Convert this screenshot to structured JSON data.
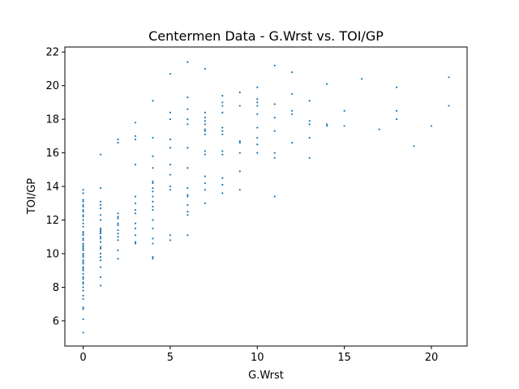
{
  "chart_data": {
    "type": "scatter",
    "title": "Centermen Data - G.Wrst vs. TOI/GP",
    "xlabel": "G.Wrst",
    "ylabel": "TOI/GP",
    "xlim": [
      -1.05,
      22.05
    ],
    "ylim": [
      4.5,
      22.3
    ],
    "xticks": [
      0,
      5,
      10,
      15,
      20
    ],
    "yticks": [
      6,
      8,
      10,
      12,
      14,
      16,
      18,
      20,
      22
    ],
    "grid": false,
    "marker_color": "#1f77b4",
    "points": [
      [
        0,
        5.3
      ],
      [
        0,
        6.1
      ],
      [
        0,
        6.7
      ],
      [
        0,
        6.8
      ],
      [
        0,
        7.3
      ],
      [
        0,
        7.5
      ],
      [
        0,
        7.8
      ],
      [
        0,
        8.0
      ],
      [
        0,
        8.2
      ],
      [
        0,
        8.3
      ],
      [
        0,
        8.5
      ],
      [
        0,
        8.6
      ],
      [
        0,
        8.8
      ],
      [
        0,
        9.0
      ],
      [
        0,
        9.1
      ],
      [
        0,
        9.2
      ],
      [
        0,
        9.4
      ],
      [
        0,
        9.5
      ],
      [
        0,
        9.6
      ],
      [
        0,
        9.8
      ],
      [
        0,
        9.9
      ],
      [
        0,
        10.0
      ],
      [
        0,
        10.2
      ],
      [
        0,
        10.3
      ],
      [
        0,
        10.4
      ],
      [
        0,
        10.5
      ],
      [
        0,
        10.6
      ],
      [
        0,
        10.8
      ],
      [
        0,
        10.9
      ],
      [
        0,
        11.1
      ],
      [
        0,
        11.2
      ],
      [
        0,
        11.3
      ],
      [
        0,
        11.6
      ],
      [
        0,
        11.8
      ],
      [
        0,
        12.0
      ],
      [
        0,
        12.2
      ],
      [
        0,
        12.3
      ],
      [
        0,
        12.5
      ],
      [
        0,
        12.6
      ],
      [
        0,
        12.8
      ],
      [
        0,
        12.9
      ],
      [
        0,
        13.1
      ],
      [
        0,
        13.2
      ],
      [
        0,
        13.6
      ],
      [
        0,
        13.8
      ],
      [
        1,
        8.1
      ],
      [
        1,
        8.6
      ],
      [
        1,
        9.2
      ],
      [
        1,
        9.6
      ],
      [
        1,
        9.8
      ],
      [
        1,
        10.0
      ],
      [
        1,
        10.3
      ],
      [
        1,
        10.4
      ],
      [
        1,
        10.7
      ],
      [
        1,
        10.9
      ],
      [
        1,
        11.0
      ],
      [
        1,
        11.2
      ],
      [
        1,
        11.3
      ],
      [
        1,
        11.4
      ],
      [
        1,
        11.5
      ],
      [
        1,
        12.0
      ],
      [
        1,
        12.3
      ],
      [
        1,
        12.7
      ],
      [
        1,
        12.9
      ],
      [
        1,
        13.1
      ],
      [
        1,
        13.9
      ],
      [
        1,
        15.9
      ],
      [
        2,
        9.7
      ],
      [
        2,
        10.2
      ],
      [
        2,
        10.8
      ],
      [
        2,
        11.0
      ],
      [
        2,
        11.2
      ],
      [
        2,
        11.4
      ],
      [
        2,
        11.7
      ],
      [
        2,
        11.8
      ],
      [
        2,
        12.1
      ],
      [
        2,
        12.2
      ],
      [
        2,
        12.4
      ],
      [
        2,
        16.6
      ],
      [
        2,
        16.8
      ],
      [
        3,
        10.6
      ],
      [
        3,
        10.7
      ],
      [
        3,
        11.1
      ],
      [
        3,
        11.5
      ],
      [
        3,
        11.8
      ],
      [
        3,
        12.4
      ],
      [
        3,
        12.6
      ],
      [
        3,
        13.0
      ],
      [
        3,
        13.4
      ],
      [
        3,
        15.3
      ],
      [
        3,
        16.8
      ],
      [
        3,
        17.0
      ],
      [
        3,
        17.8
      ],
      [
        4,
        9.7
      ],
      [
        4,
        9.8
      ],
      [
        4,
        10.6
      ],
      [
        4,
        10.9
      ],
      [
        4,
        11.5
      ],
      [
        4,
        12.0
      ],
      [
        4,
        12.6
      ],
      [
        4,
        12.8
      ],
      [
        4,
        13.1
      ],
      [
        4,
        13.4
      ],
      [
        4,
        13.7
      ],
      [
        4,
        13.9
      ],
      [
        4,
        14.2
      ],
      [
        4,
        14.3
      ],
      [
        4,
        15.1
      ],
      [
        4,
        15.8
      ],
      [
        4,
        16.9
      ],
      [
        4,
        19.1
      ],
      [
        5,
        10.8
      ],
      [
        5,
        11.1
      ],
      [
        5,
        13.8
      ],
      [
        5,
        14.0
      ],
      [
        5,
        14.7
      ],
      [
        5,
        15.3
      ],
      [
        5,
        16.3
      ],
      [
        5,
        16.8
      ],
      [
        5,
        18.0
      ],
      [
        5,
        18.4
      ],
      [
        5,
        20.7
      ],
      [
        6,
        11.1
      ],
      [
        6,
        12.3
      ],
      [
        6,
        12.5
      ],
      [
        6,
        12.9
      ],
      [
        6,
        13.4
      ],
      [
        6,
        13.5
      ],
      [
        6,
        13.9
      ],
      [
        6,
        15.1
      ],
      [
        6,
        16.3
      ],
      [
        6,
        17.7
      ],
      [
        6,
        18.0
      ],
      [
        6,
        18.6
      ],
      [
        6,
        19.3
      ],
      [
        6,
        21.4
      ],
      [
        7,
        13.0
      ],
      [
        7,
        13.8
      ],
      [
        7,
        14.2
      ],
      [
        7,
        14.6
      ],
      [
        7,
        15.9
      ],
      [
        7,
        16.1
      ],
      [
        7,
        17.1
      ],
      [
        7,
        17.3
      ],
      [
        7,
        17.4
      ],
      [
        7,
        17.7
      ],
      [
        7,
        17.9
      ],
      [
        7,
        18.1
      ],
      [
        7,
        18.4
      ],
      [
        7,
        21.0
      ],
      [
        8,
        13.6
      ],
      [
        8,
        14.1
      ],
      [
        8,
        14.5
      ],
      [
        8,
        15.9
      ],
      [
        8,
        16.1
      ],
      [
        8,
        17.1
      ],
      [
        8,
        17.3
      ],
      [
        8,
        17.5
      ],
      [
        8,
        18.4
      ],
      [
        8,
        18.8
      ],
      [
        8,
        19.0
      ],
      [
        8,
        19.4
      ],
      [
        9,
        13.8
      ],
      [
        9,
        14.9
      ],
      [
        9,
        16.0
      ],
      [
        9,
        16.6
      ],
      [
        9,
        16.7
      ],
      [
        9,
        18.8
      ],
      [
        9,
        19.6
      ],
      [
        10,
        16.0
      ],
      [
        10,
        16.5
      ],
      [
        10,
        16.9
      ],
      [
        10,
        17.5
      ],
      [
        10,
        18.3
      ],
      [
        10,
        18.8
      ],
      [
        10,
        19.0
      ],
      [
        10,
        19.2
      ],
      [
        10,
        19.9
      ],
      [
        11,
        13.4
      ],
      [
        11,
        15.7
      ],
      [
        11,
        16.0
      ],
      [
        11,
        17.3
      ],
      [
        11,
        18.1
      ],
      [
        11,
        18.9
      ],
      [
        11,
        21.2
      ],
      [
        12,
        16.6
      ],
      [
        12,
        18.3
      ],
      [
        12,
        18.5
      ],
      [
        12,
        19.5
      ],
      [
        12,
        20.8
      ],
      [
        13,
        15.7
      ],
      [
        13,
        16.9
      ],
      [
        13,
        17.7
      ],
      [
        13,
        17.9
      ],
      [
        13,
        19.1
      ],
      [
        14,
        17.6
      ],
      [
        14,
        17.7
      ],
      [
        14,
        20.1
      ],
      [
        15,
        17.6
      ],
      [
        15,
        18.5
      ],
      [
        16,
        20.4
      ],
      [
        17,
        17.4
      ],
      [
        18,
        18.0
      ],
      [
        18,
        18.5
      ],
      [
        18,
        19.9
      ],
      [
        19,
        16.4
      ],
      [
        20,
        17.6
      ],
      [
        21,
        18.8
      ],
      [
        21,
        20.5
      ]
    ]
  }
}
